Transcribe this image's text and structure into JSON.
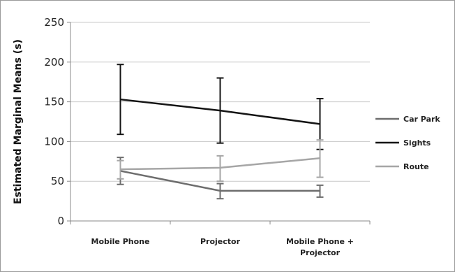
{
  "chart_data": {
    "type": "line",
    "ylabel": "Estimated Marginal Means (s)",
    "xlabel": "",
    "ylim": [
      0,
      250
    ],
    "yticks": [
      0,
      50,
      100,
      150,
      200,
      250
    ],
    "grid": true,
    "legend_position": "right",
    "categories": [
      "Mobile Phone",
      "Projector",
      "Mobile Phone + Projector"
    ],
    "category_lines": [
      [
        "Mobile Phone"
      ],
      [
        "Projector"
      ],
      [
        "Mobile Phone +",
        "Projector"
      ]
    ],
    "series": [
      {
        "name": "Car Park",
        "color": "#6d6d6d",
        "values": [
          63,
          38,
          38
        ],
        "error_low": [
          46,
          28,
          30
        ],
        "error_high": [
          80,
          47,
          45
        ]
      },
      {
        "name": "Sights",
        "color": "#141414",
        "values": [
          153,
          139,
          122
        ],
        "error_low": [
          109,
          98,
          90
        ],
        "error_high": [
          197,
          180,
          154
        ]
      },
      {
        "name": "Route",
        "color": "#a6a6a6",
        "values": [
          65,
          67,
          79
        ],
        "error_low": [
          53,
          50,
          55
        ],
        "error_high": [
          76,
          82,
          102
        ]
      }
    ]
  }
}
